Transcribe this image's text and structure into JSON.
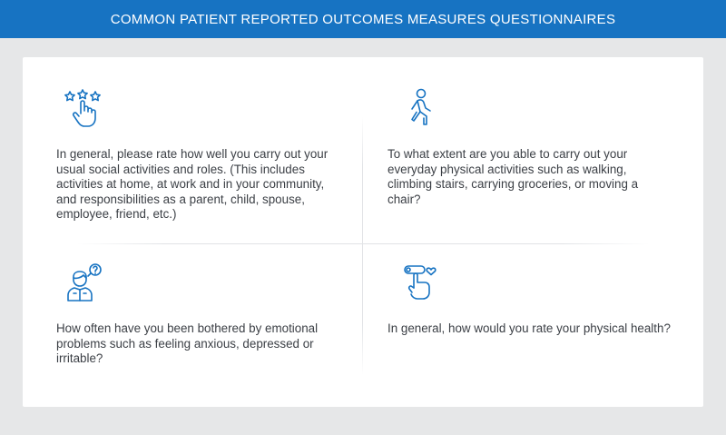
{
  "header": {
    "title": "COMMON PATIENT REPORTED OUTCOMES MEASURES QUESTIONNAIRES"
  },
  "colors": {
    "header_background": "#1773c2",
    "icon_stroke": "#1773c2",
    "page_background": "#e6e7e8",
    "card_background": "#ffffff",
    "body_text": "#3b3f45"
  },
  "questions": [
    {
      "icon": "hand-rating-stars-icon",
      "text": "In general, please rate how well you carry out your usual social activities and roles. (This includes activities at home, at work and in your community, and responsibilities as a parent, child, spouse, employee, friend, etc.)"
    },
    {
      "icon": "walking-person-icon",
      "text": "To what extent are you able to carry out your everyday physical activities such as walking, climbing stairs, carrying groceries, or moving a chair?"
    },
    {
      "icon": "person-question-bubble-icon",
      "text": "How often have you been bothered by emotional problems such as feeling anxious, depressed or irritable?"
    },
    {
      "icon": "hand-slider-heart-icon",
      "text": "In general, how would you rate your physical health?"
    }
  ]
}
